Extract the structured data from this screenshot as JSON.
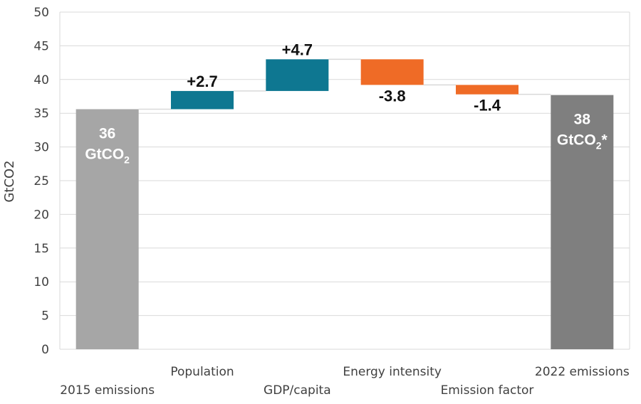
{
  "chart_data": {
    "type": "waterfall",
    "ylabel": "GtCO2",
    "ylim": [
      0,
      50
    ],
    "yticks": [
      0,
      5,
      10,
      15,
      20,
      25,
      30,
      35,
      40,
      45,
      50
    ],
    "grid": true,
    "bars": [
      {
        "category": "2015 emissions",
        "kind": "total",
        "value": 35.6,
        "label_line1": "36",
        "label_line2": "GtCO",
        "label_sub": "2",
        "label_suffix": ""
      },
      {
        "category": "Population",
        "kind": "delta",
        "value": 2.7,
        "label": "+2.7"
      },
      {
        "category": "GDP/capita",
        "kind": "delta",
        "value": 4.7,
        "label": "+4.7"
      },
      {
        "category": "Energy intensity",
        "kind": "delta",
        "value": -3.8,
        "label": "-3.8"
      },
      {
        "category": "Emission factor",
        "kind": "delta",
        "value": -1.4,
        "label": "-1.4"
      },
      {
        "category": "2022 emissions",
        "kind": "total",
        "value": 37.7,
        "label_line1": "38",
        "label_line2": "GtCO",
        "label_sub": "2",
        "label_suffix": "*"
      }
    ],
    "colors": {
      "start_total": "#a6a6a6",
      "end_total": "#7f7f7f",
      "increase": "#0e7791",
      "decrease": "#ef6b26",
      "connector": "#d9d9d9",
      "grid": "#d9d9d9"
    }
  }
}
